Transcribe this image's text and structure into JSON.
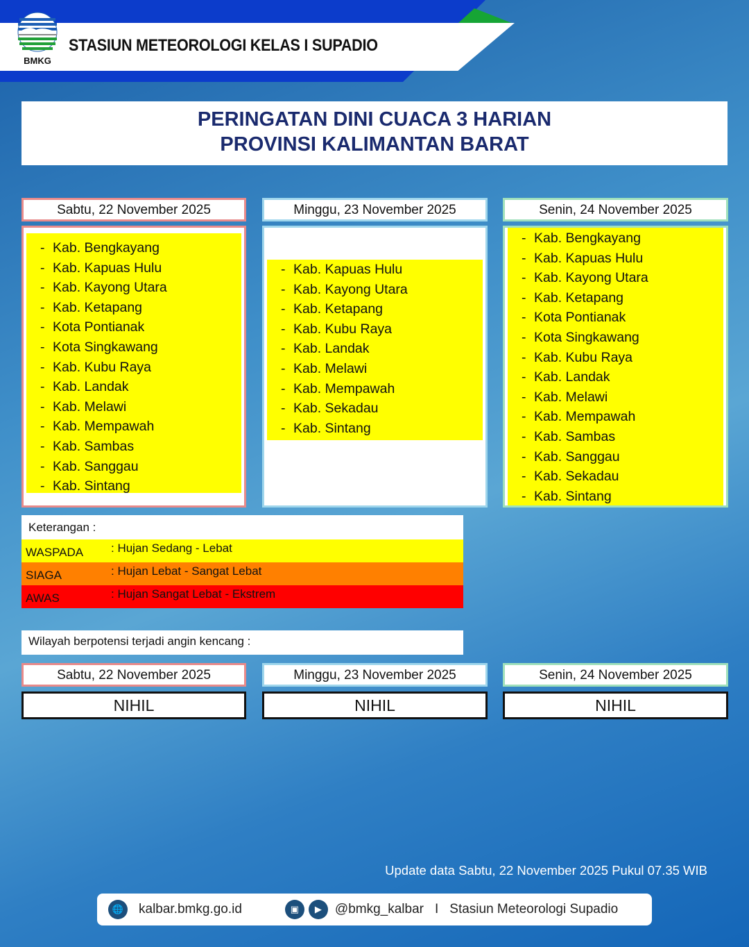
{
  "header": {
    "station": "STASIUN METEOROLOGI KELAS I SUPADIO",
    "logo_text": "BMKG"
  },
  "title": {
    "line1": "PERINGATAN DINI CUACA 3 HARIAN",
    "line2": "PROVINSI  KALIMANTAN  BARAT"
  },
  "days": [
    {
      "date": "Sabtu, 22 November 2025",
      "level": "WASPADA",
      "areas": [
        "Kab. Bengkayang",
        "Kab. Kapuas Hulu",
        "Kab. Kayong Utara",
        "Kab. Ketapang",
        "Kota Pontianak",
        "Kota Singkawang",
        "Kab. Kubu Raya",
        "Kab. Landak",
        "Kab. Melawi",
        "Kab. Mempawah",
        "Kab. Sambas",
        "Kab. Sanggau",
        "Kab. Sintang"
      ]
    },
    {
      "date": "Minggu, 23 November 2025",
      "level": "WASPADA",
      "areas": [
        "Kab. Kapuas Hulu",
        "Kab. Kayong Utara",
        "Kab. Ketapang",
        "Kab. Kubu Raya",
        "Kab. Landak",
        "Kab. Melawi",
        "Kab. Mempawah",
        "Kab. Sekadau",
        "Kab. Sintang"
      ]
    },
    {
      "date": "Senin, 24 November 2025",
      "level": "WASPADA",
      "areas": [
        "Kab. Bengkayang",
        "Kab. Kapuas Hulu",
        "Kab. Kayong Utara",
        "Kab. Ketapang",
        "Kota Pontianak",
        "Kota Singkawang",
        "Kab. Kubu Raya",
        "Kab. Landak",
        "Kab. Melawi",
        "Kab. Mempawah",
        "Kab. Sambas",
        "Kab. Sanggau",
        "Kab. Sekadau",
        "Kab. Sintang"
      ]
    }
  ],
  "legend": {
    "title": "Keterangan :",
    "items": [
      {
        "level": "WASPADA",
        "desc": ": Hujan Sedang - Lebat",
        "color": "#ffff00"
      },
      {
        "level": "SIAGA",
        "desc": ": Hujan Lebat - Sangat Lebat",
        "color": "#ff8000"
      },
      {
        "level": "AWAS",
        "desc": ": Hujan Sangat Lebat - Ekstrem",
        "color": "#ff0000"
      }
    ]
  },
  "wind": {
    "title": "Wilayah berpotensi terjadi angin kencang :",
    "days": [
      {
        "date": "Sabtu, 22 November 2025",
        "value": "NIHIL"
      },
      {
        "date": "Minggu, 23 November 2025",
        "value": "NIHIL"
      },
      {
        "date": "Senin, 24 November 2025",
        "value": "NIHIL"
      }
    ]
  },
  "update": "Update data Sabtu, 22 November 2025 Pukul 07.35 WIB",
  "footer": {
    "website": "kalbar.bmkg.go.id",
    "social": "@bmkg_kalbar",
    "separator": "I",
    "name": "Stasiun Meteorologi Supadio",
    "icons": [
      "globe-icon",
      "instagram-icon",
      "youtube-icon"
    ]
  }
}
